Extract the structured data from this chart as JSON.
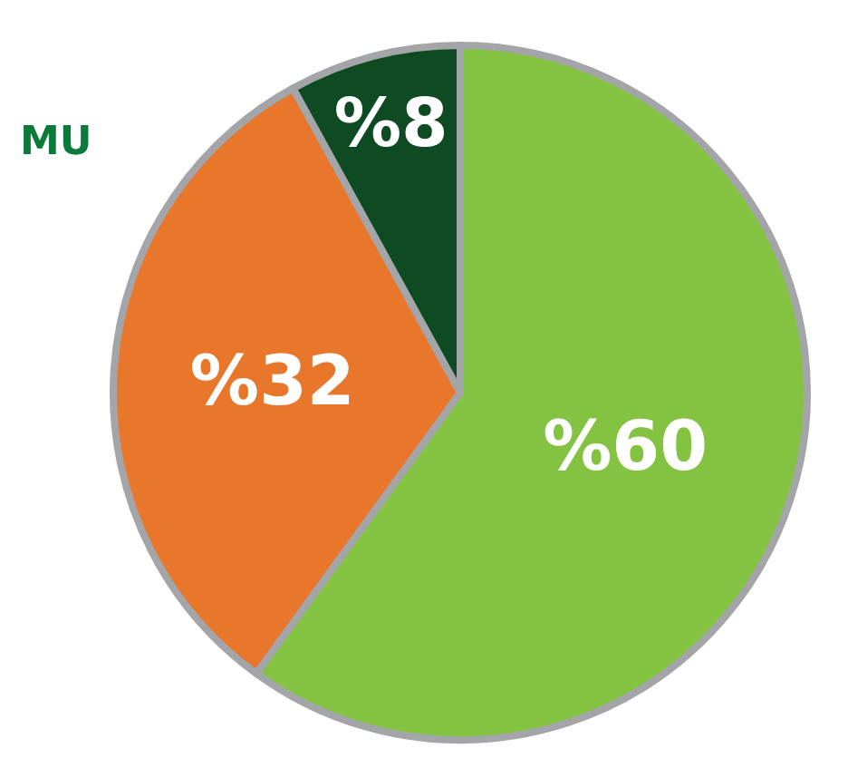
{
  "chart_data": {
    "type": "pie",
    "categories": [
      null,
      null,
      null
    ],
    "values": [
      60,
      32,
      8
    ],
    "colors": [
      "#84c341",
      "#e8762b",
      "#0e4a22"
    ],
    "value_labels": [
      "%60",
      "%32",
      "%8"
    ],
    "annotations": [
      "MU"
    ],
    "legend": false
  }
}
